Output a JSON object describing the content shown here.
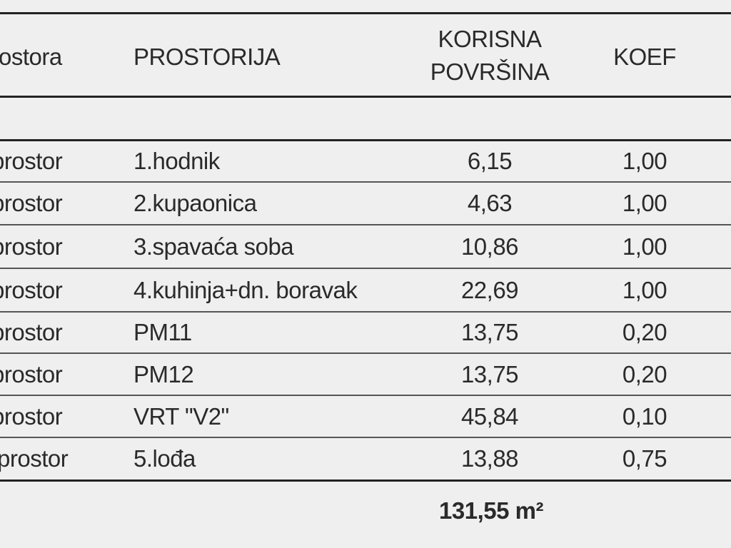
{
  "header": {
    "cells": [
      "ostora",
      "PROSTORIJA",
      [
        "KORISNA",
        "POVRŠINA"
      ],
      "KOEF"
    ]
  },
  "table": {
    "rows": [
      [
        "prostor",
        "1.hodnik",
        "6,15",
        "1,00"
      ],
      [
        "prostor",
        "2.kupaonica",
        "4,63",
        "1,00"
      ],
      [
        "prostor",
        "3.spavaća soba",
        "10,86",
        "1,00"
      ],
      [
        "prostor",
        "4.kuhinja+dn. boravak",
        "22,69",
        "1,00"
      ],
      [
        "prostor",
        "PM11",
        "13,75",
        "0,20"
      ],
      [
        "prostor",
        "PM12",
        "13,75",
        "0,20"
      ],
      [
        "prostor",
        "VRT \"V2\"",
        "45,84",
        "0,10"
      ],
      [
        "prostor",
        "5.lođa",
        "13,88",
        "0,75"
      ]
    ]
  },
  "total": "131,55 m²"
}
